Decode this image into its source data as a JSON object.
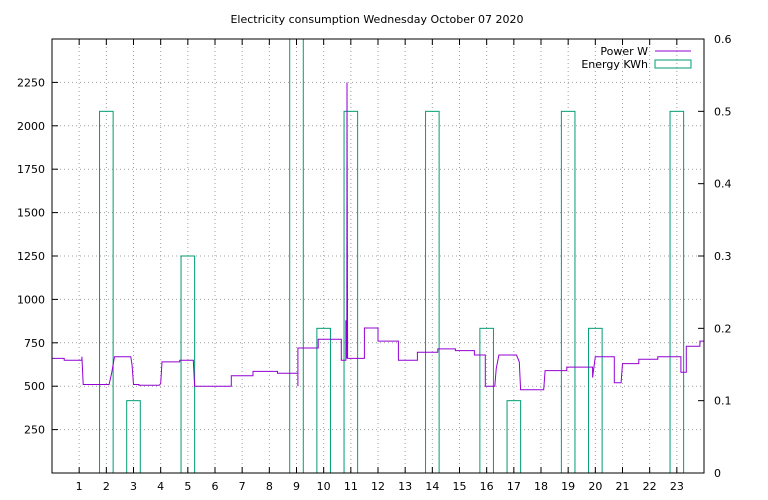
{
  "chart_data": {
    "type": "line",
    "title": "Electricity consumption Wednesday October 07 2020",
    "xlim": [
      0,
      24
    ],
    "ylim": [
      0,
      2500
    ],
    "y2lim": [
      0,
      0.6
    ],
    "x_ticks": [
      1,
      2,
      3,
      4,
      5,
      6,
      7,
      8,
      9,
      10,
      11,
      12,
      13,
      14,
      15,
      16,
      17,
      18,
      19,
      20,
      21,
      22,
      23
    ],
    "y_ticks": [
      250,
      500,
      750,
      1000,
      1250,
      1500,
      1750,
      2000,
      2250
    ],
    "y2_ticks": [
      "0",
      "0.1",
      "0.2",
      "0.3",
      "0.4",
      "0.5",
      "0.6"
    ],
    "grid": true,
    "legend_position": "top-right",
    "series": [
      {
        "name": "Power W",
        "type": "step-line",
        "axis": "y",
        "color": "#9400d3",
        "points": [
          [
            0,
            660
          ],
          [
            0.45,
            660
          ],
          [
            0.45,
            650
          ],
          [
            1.1,
            650
          ],
          [
            1.1,
            670
          ],
          [
            1.15,
            510
          ],
          [
            2.1,
            510
          ],
          [
            2.2,
            580
          ],
          [
            2.3,
            670
          ],
          [
            2.9,
            670
          ],
          [
            2.95,
            620
          ],
          [
            3.0,
            510
          ],
          [
            3.2,
            510
          ],
          [
            3.2,
            505
          ],
          [
            3.95,
            505
          ],
          [
            4.0,
            515
          ],
          [
            4.05,
            640
          ],
          [
            4.7,
            640
          ],
          [
            4.7,
            650
          ],
          [
            5.0,
            650
          ],
          [
            5.2,
            650
          ],
          [
            5.25,
            500
          ],
          [
            6.6,
            500
          ],
          [
            6.6,
            560
          ],
          [
            7.4,
            560
          ],
          [
            7.4,
            585
          ],
          [
            8.3,
            585
          ],
          [
            8.3,
            575
          ],
          [
            9.05,
            575
          ],
          [
            9.05,
            500
          ],
          [
            9.05,
            720
          ],
          [
            9.8,
            720
          ],
          [
            9.8,
            770
          ],
          [
            10.65,
            770
          ],
          [
            10.65,
            650
          ],
          [
            10.82,
            650
          ],
          [
            10.82,
            880
          ],
          [
            10.85,
            660
          ],
          [
            10.86,
            2250
          ],
          [
            10.88,
            660
          ],
          [
            11.5,
            660
          ],
          [
            11.5,
            835
          ],
          [
            12.0,
            835
          ],
          [
            12.0,
            760
          ],
          [
            12.75,
            760
          ],
          [
            12.75,
            650
          ],
          [
            13.45,
            650
          ],
          [
            13.45,
            695
          ],
          [
            14.2,
            695
          ],
          [
            14.2,
            715
          ],
          [
            14.85,
            715
          ],
          [
            14.85,
            705
          ],
          [
            15.55,
            705
          ],
          [
            15.55,
            680
          ],
          [
            15.95,
            680
          ],
          [
            15.95,
            500
          ],
          [
            16.3,
            500
          ],
          [
            16.35,
            600
          ],
          [
            16.45,
            680
          ],
          [
            17.1,
            680
          ],
          [
            17.2,
            640
          ],
          [
            17.25,
            480
          ],
          [
            18.1,
            480
          ],
          [
            18.15,
            590
          ],
          [
            18.95,
            590
          ],
          [
            18.95,
            610
          ],
          [
            19.9,
            610
          ],
          [
            19.9,
            550
          ],
          [
            20.0,
            670
          ],
          [
            20.7,
            670
          ],
          [
            20.7,
            520
          ],
          [
            20.95,
            520
          ],
          [
            21.0,
            630
          ],
          [
            21.6,
            630
          ],
          [
            21.6,
            655
          ],
          [
            22.3,
            655
          ],
          [
            22.3,
            670
          ],
          [
            23.15,
            670
          ],
          [
            23.15,
            580
          ],
          [
            23.35,
            580
          ],
          [
            23.35,
            730
          ],
          [
            23.85,
            730
          ],
          [
            23.85,
            760
          ],
          [
            24,
            760
          ]
        ]
      },
      {
        "name": "Energy KWh",
        "type": "bar",
        "axis": "y2",
        "color": "#009e73",
        "bar_width": 0.5,
        "x": [
          2,
          3,
          5,
          9,
          10,
          11,
          14,
          16,
          17,
          19,
          20,
          23
        ],
        "values": [
          0.5,
          0.1,
          0.3,
          0.6,
          0.2,
          0.5,
          0.5,
          0.2,
          0.1,
          0.5,
          0.2,
          0.5
        ]
      }
    ]
  }
}
